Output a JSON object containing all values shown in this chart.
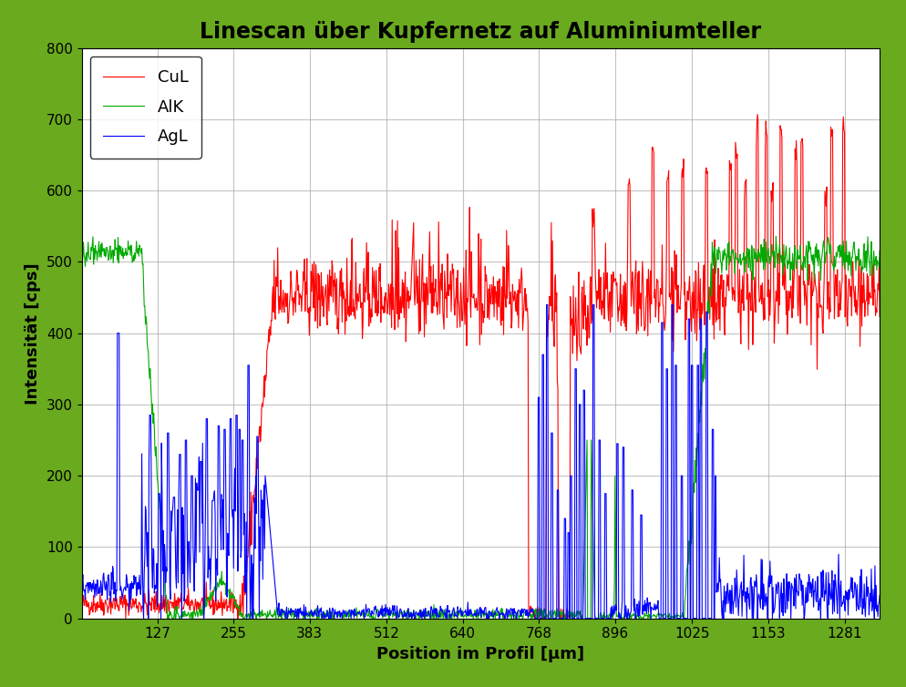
{
  "title": "Linescan über Kupfernetz auf Aluminiumteller",
  "xlabel": "Position im Profil [µm]",
  "ylabel": "Intensität [cps]",
  "xlim": [
    0,
    1340
  ],
  "ylim": [
    0,
    800
  ],
  "yticks": [
    0,
    100,
    200,
    300,
    400,
    500,
    600,
    700,
    800
  ],
  "xticks": [
    127,
    255,
    383,
    512,
    640,
    768,
    896,
    1025,
    1153,
    1281
  ],
  "background_color": "#ffffff",
  "outer_background": "#6aaa1e",
  "grid_color": "#aaaaaa",
  "legend_labels": [
    "CuL",
    "AlK",
    "AgL"
  ],
  "line_colors": [
    "#ff0000",
    "#00aa00",
    "#0000ff"
  ],
  "line_width": 0.8,
  "title_fontsize": 17,
  "axis_label_fontsize": 13,
  "tick_fontsize": 11,
  "legend_fontsize": 13,
  "n_points": 1340,
  "seed": 42
}
